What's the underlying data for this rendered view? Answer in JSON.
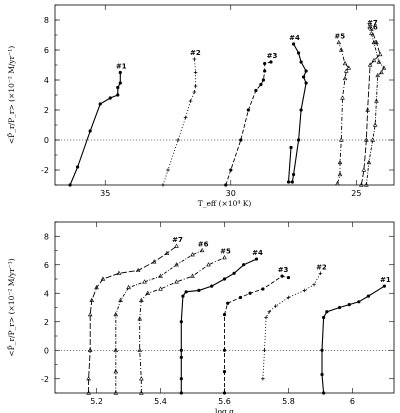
{
  "chart_data": [
    {
      "type": "line",
      "xlabel": "T_eff (×10⁴ K)",
      "ylabel": "<P̂_r/P_r> (×10⁻² M/yr⁻¹)",
      "xlim": [
        37,
        23.5
      ],
      "ylim": [
        -3,
        9
      ],
      "xticks": [
        35,
        30,
        25
      ],
      "yticks": [
        -2,
        0,
        2,
        4,
        6,
        8
      ],
      "zero_line": true,
      "series": [
        {
          "name": "#1",
          "dash": "solid",
          "marker": "dot",
          "points": [
            [
              36.4,
              -3
            ],
            [
              36.1,
              -1.8
            ],
            [
              35.6,
              0.6
            ],
            [
              35.2,
              2.4
            ],
            [
              34.8,
              2.8
            ],
            [
              34.5,
              3.0
            ],
            [
              34.5,
              3.5
            ],
            [
              34.4,
              3.8
            ],
            [
              34.4,
              4.5
            ]
          ]
        },
        {
          "name": "#2",
          "dash": "dotted",
          "marker": "plus",
          "points": [
            [
              32.7,
              -3
            ],
            [
              32.5,
              -2
            ],
            [
              32.1,
              0
            ],
            [
              31.8,
              1.5
            ],
            [
              31.6,
              2.6
            ],
            [
              31.45,
              3.2
            ],
            [
              31.4,
              3.6
            ],
            [
              31.4,
              4.5
            ],
            [
              31.45,
              5.4
            ]
          ]
        },
        {
          "name": "#3",
          "dash": "dashed",
          "marker": "dot",
          "points": [
            [
              30.2,
              -3
            ],
            [
              30.0,
              -2
            ],
            [
              29.6,
              0
            ],
            [
              29.3,
              2
            ],
            [
              29.0,
              3.3
            ],
            [
              28.8,
              3.7
            ],
            [
              28.7,
              4.0
            ],
            [
              28.65,
              4.6
            ],
            [
              28.65,
              5.1
            ],
            [
              28.4,
              5.2
            ]
          ]
        },
        {
          "name": "#4",
          "dash": "solid",
          "marker": "dot",
          "points": [
            [
              27.6,
              -0.5
            ],
            [
              27.7,
              -2.8
            ],
            [
              27.55,
              -2.8
            ],
            [
              27.5,
              -2.3
            ],
            [
              27.3,
              0
            ],
            [
              27.2,
              2
            ],
            [
              27.0,
              3.8
            ],
            [
              27.1,
              4.2
            ],
            [
              27.0,
              4.6
            ],
            [
              27.2,
              5.2
            ],
            [
              27.3,
              5.8
            ],
            [
              27.5,
              6.4
            ]
          ]
        },
        {
          "name": "#5",
          "dash": "dotdash",
          "marker": "triangle",
          "points": [
            [
              25.75,
              -2.9
            ],
            [
              25.65,
              -2.3
            ],
            [
              25.65,
              -1.5
            ],
            [
              25.6,
              0
            ],
            [
              25.55,
              2.8
            ],
            [
              25.45,
              4.1
            ],
            [
              25.4,
              4.6
            ],
            [
              25.3,
              4.8
            ],
            [
              25.45,
              5.1
            ],
            [
              25.6,
              6.0
            ],
            [
              25.7,
              6.5
            ]
          ]
        },
        {
          "name": "#6",
          "dash": "dashdot",
          "marker": "triangle",
          "points": [
            [
              24.6,
              -3
            ],
            [
              24.5,
              -1.5
            ],
            [
              24.35,
              0
            ],
            [
              24.25,
              1
            ],
            [
              24.2,
              2.6
            ],
            [
              24.15,
              4.3
            ],
            [
              24.0,
              4.5
            ],
            [
              23.9,
              4.8
            ],
            [
              24.1,
              5.2
            ],
            [
              24.3,
              6.5
            ],
            [
              24.4,
              7.1
            ]
          ]
        },
        {
          "name": "#7",
          "dash": "longdash",
          "marker": "triangle",
          "points": [
            [
              24.8,
              -3
            ],
            [
              24.7,
              -2
            ],
            [
              24.6,
              0
            ],
            [
              24.55,
              2
            ],
            [
              24.45,
              5.0
            ],
            [
              24.3,
              5.3
            ],
            [
              24.05,
              5.7
            ],
            [
              24.2,
              6.5
            ],
            [
              24.4,
              7.4
            ]
          ]
        }
      ],
      "series_labels": [
        "#1",
        "#2",
        "#3",
        "#4",
        "#5",
        "#6",
        "#7"
      ]
    },
    {
      "type": "line",
      "xlabel": "log g",
      "ylabel": "<P̂_r/P_r> (×10⁻² M/yr⁻¹)",
      "xlim": [
        5.07,
        6.13
      ],
      "ylim": [
        -3,
        9
      ],
      "xticks": [
        5.2,
        5.4,
        5.6,
        5.8,
        6
      ],
      "yticks": [
        -2,
        0,
        2,
        4,
        6,
        8
      ],
      "zero_line": true,
      "series": [
        {
          "name": "#1",
          "dash": "solid",
          "marker": "dot",
          "points": [
            [
              5.91,
              -3
            ],
            [
              5.905,
              -1.7
            ],
            [
              5.905,
              0
            ],
            [
              5.91,
              2.3
            ],
            [
              5.92,
              2.7
            ],
            [
              5.96,
              3.0
            ],
            [
              5.99,
              3.2
            ],
            [
              6.02,
              3.4
            ],
            [
              6.05,
              3.8
            ],
            [
              6.1,
              4.5
            ]
          ]
        },
        {
          "name": "#2",
          "dash": "dotted",
          "marker": "plus",
          "points": [
            [
              5.72,
              -2
            ],
            [
              5.725,
              0
            ],
            [
              5.73,
              2.3
            ],
            [
              5.74,
              2.7
            ],
            [
              5.76,
              3.1
            ],
            [
              5.8,
              3.7
            ],
            [
              5.85,
              4.2
            ],
            [
              5.88,
              4.6
            ],
            [
              5.9,
              5.4
            ]
          ]
        },
        {
          "name": "#3",
          "dash": "dashed",
          "marker": "dot",
          "points": [
            [
              5.6,
              -3
            ],
            [
              5.6,
              -1.5
            ],
            [
              5.6,
              0
            ],
            [
              5.6,
              2.5
            ],
            [
              5.61,
              3.3
            ],
            [
              5.65,
              3.7
            ],
            [
              5.68,
              4.0
            ],
            [
              5.72,
              4.3
            ],
            [
              5.78,
              5.2
            ],
            [
              5.8,
              5.1
            ]
          ]
        },
        {
          "name": "#4",
          "dash": "solid",
          "marker": "dot",
          "points": [
            [
              5.465,
              -3
            ],
            [
              5.465,
              -2
            ],
            [
              5.465,
              -0.5
            ],
            [
              5.465,
              0
            ],
            [
              5.465,
              2
            ],
            [
              5.47,
              3.8
            ],
            [
              5.48,
              4.1
            ],
            [
              5.52,
              4.2
            ],
            [
              5.56,
              4.5
            ],
            [
              5.6,
              5.0
            ],
            [
              5.63,
              5.4
            ],
            [
              5.66,
              6.0
            ],
            [
              5.7,
              6.4
            ]
          ]
        },
        {
          "name": "#5",
          "dash": "dotdash",
          "marker": "triangle",
          "points": [
            [
              5.34,
              -3
            ],
            [
              5.34,
              -2
            ],
            [
              5.335,
              0
            ],
            [
              5.335,
              2.2
            ],
            [
              5.34,
              3.5
            ],
            [
              5.36,
              4.0
            ],
            [
              5.4,
              4.3
            ],
            [
              5.45,
              4.8
            ],
            [
              5.5,
              5.2
            ],
            [
              5.55,
              6.0
            ],
            [
              5.6,
              6.5
            ]
          ]
        },
        {
          "name": "#6",
          "dash": "dashdot",
          "marker": "triangle",
          "points": [
            [
              5.26,
              -3
            ],
            [
              5.26,
              -1.5
            ],
            [
              5.26,
              0
            ],
            [
              5.26,
              2.5
            ],
            [
              5.275,
              3.5
            ],
            [
              5.3,
              4.4
            ],
            [
              5.35,
              4.8
            ],
            [
              5.4,
              5.2
            ],
            [
              5.45,
              6.0
            ],
            [
              5.5,
              6.7
            ],
            [
              5.53,
              7.0
            ]
          ]
        },
        {
          "name": "#7",
          "dash": "longdash",
          "marker": "triangle",
          "points": [
            [
              5.175,
              -3
            ],
            [
              5.175,
              -2
            ],
            [
              5.18,
              0
            ],
            [
              5.18,
              2.5
            ],
            [
              5.185,
              3.5
            ],
            [
              5.2,
              4.4
            ],
            [
              5.22,
              5.0
            ],
            [
              5.27,
              5.4
            ],
            [
              5.33,
              5.6
            ],
            [
              5.38,
              6.2
            ],
            [
              5.42,
              6.8
            ],
            [
              5.45,
              7.3
            ]
          ]
        }
      ],
      "series_labels": [
        "#1",
        "#2",
        "#3",
        "#4",
        "#5",
        "#6",
        "#7"
      ]
    }
  ]
}
